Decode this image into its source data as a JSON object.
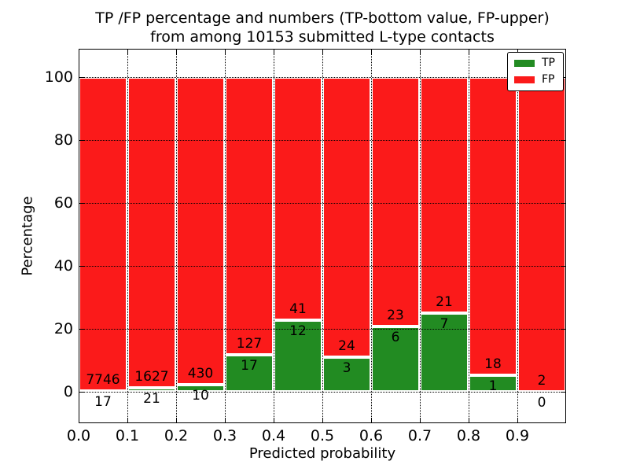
{
  "figure": {
    "title_line1": "TP /FP percentage and numbers (TP-bottom value, FP-upper)",
    "title_line2": "from among 10153 submitted L-type contacts"
  },
  "chart_data": {
    "type": "bar",
    "stacked": true,
    "normalized": "each bin scaled to 100%",
    "title": "TP /FP percentage and numbers (TP-bottom value, FP-upper) from among 10153 submitted L-type contacts",
    "xlabel": "Predicted probability",
    "ylabel": "Percentage",
    "total_contacts": 10153,
    "bin_edges": [
      0.0,
      0.1,
      0.2,
      0.3,
      0.4,
      0.5,
      0.6,
      0.7,
      0.8,
      0.9,
      1.0
    ],
    "series": [
      {
        "name": "TP",
        "color": "#228b22",
        "counts": [
          17,
          21,
          10,
          17,
          12,
          3,
          6,
          7,
          1,
          0
        ]
      },
      {
        "name": "FP",
        "color": "#fb1a1a",
        "counts": [
          7746,
          1627,
          430,
          127,
          41,
          24,
          23,
          21,
          18,
          2
        ]
      }
    ],
    "xticks": [
      "0.0",
      "0.1",
      "0.2",
      "0.3",
      "0.4",
      "0.5",
      "0.6",
      "0.7",
      "0.8",
      "0.9"
    ],
    "yticks": [
      "0",
      "20",
      "40",
      "60",
      "80",
      "100"
    ],
    "xlim": [
      0,
      1.0
    ],
    "ylim": [
      -10,
      109
    ],
    "grid": "dotted",
    "bar_edge_color": "#ffffff",
    "legend": {
      "position": "upper right",
      "entries": [
        {
          "label": "TP",
          "color": "#228b22"
        },
        {
          "label": "FP",
          "color": "#fb1a1a"
        }
      ]
    }
  }
}
